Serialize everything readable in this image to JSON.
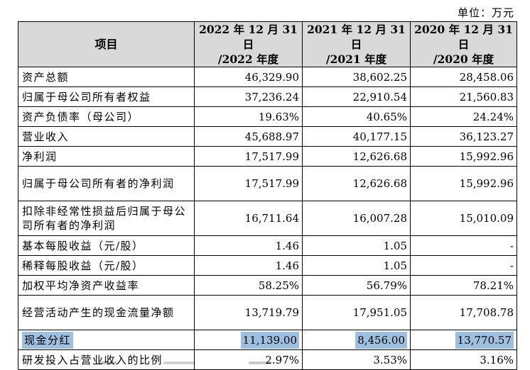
{
  "unit": "单位：万元",
  "header": {
    "item": "项目",
    "cols": [
      {
        "l1": "2022 年 12 月 31 日",
        "l2": "/2022 年度"
      },
      {
        "l1": "2021 年 12 月 31 日",
        "l2": "/2021 年度"
      },
      {
        "l1": "2020 年 12 月 31 日",
        "l2": "/2020 年度"
      }
    ]
  },
  "rows": [
    {
      "label": "资产总额",
      "values": [
        "46,329.90",
        "38,602.25",
        "28,458.06"
      ]
    },
    {
      "label": "归属于母公司所有者权益",
      "values": [
        "37,236.24",
        "22,910.54",
        "21,560.83"
      ]
    },
    {
      "label": "资产负债率（母公司）",
      "values": [
        "19.63%",
        "40.65%",
        "24.24%"
      ]
    },
    {
      "label": "营业收入",
      "values": [
        "45,688.97",
        "40,177.15",
        "36,123.27"
      ]
    },
    {
      "label": "净利润",
      "values": [
        "17,517.99",
        "12,626.68",
        "15,992.96"
      ]
    },
    {
      "label": "归属于母公司所有者的净利润",
      "values": [
        "17,517.99",
        "12,626.68",
        "15,992.96"
      ]
    },
    {
      "label": "扣除非经常性损益后归属于母公司所有者的净利润",
      "values": [
        "16,711.64",
        "16,007.28",
        "15,010.09"
      ]
    },
    {
      "label": "基本每股收益（元/股）",
      "values": [
        "1.46",
        "1.05",
        "-"
      ]
    },
    {
      "label": "稀释每股收益（元/股）",
      "values": [
        "1.46",
        "1.05",
        "-"
      ]
    },
    {
      "label": "加权平均净资产收益率",
      "values": [
        "58.25%",
        "56.79%",
        "78.21%"
      ]
    },
    {
      "label": "经营活动产生的现金流量净额",
      "values": [
        "13,719.79",
        "17,951.05",
        "17,708.78"
      ]
    },
    {
      "label": "现金分红",
      "values": [
        "11,139.00",
        "8,456.00",
        "13,770.57"
      ]
    },
    {
      "label": "研发投入占营业收入的比例",
      "values": [
        "2.97%",
        "3.53%",
        "3.16%"
      ]
    }
  ],
  "highlight_color": "#9dbfe0",
  "header_bg": "#d9d9d9"
}
